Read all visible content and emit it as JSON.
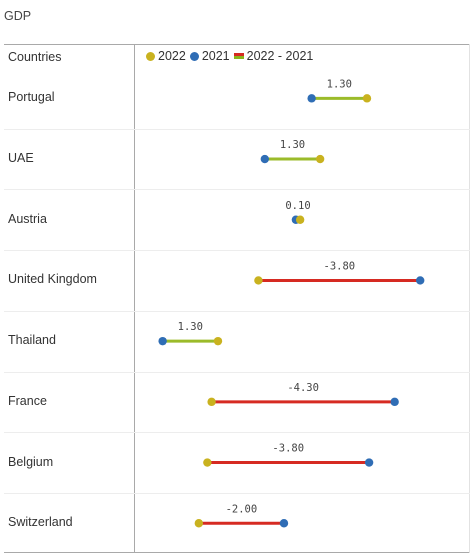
{
  "title": "GDP",
  "column_header": "Countries",
  "legend": [
    {
      "label": "2022",
      "color": "#c9b21f",
      "kind": "dot"
    },
    {
      "label": "2021",
      "color": "#2f6db5",
      "kind": "dot"
    },
    {
      "label": "2022 - 2021",
      "kind": "diff"
    }
  ],
  "colors": {
    "y2022": "#c9b21f",
    "y2021": "#2f6db5",
    "positive": "#9bbb2a",
    "negative": "#d62a22"
  },
  "chart_data": {
    "type": "dumbbell",
    "title": "GDP",
    "category_label": "Countries",
    "series_names": [
      "2022",
      "2021",
      "2022 - 2021"
    ],
    "xlim": [
      -1.5,
      5.5
    ],
    "rows": [
      {
        "country": "Portugal",
        "y2022": 3.55,
        "y2021": 2.25,
        "diff": "1.30"
      },
      {
        "country": "UAE",
        "y2022": 2.45,
        "y2021": 1.15,
        "diff": "1.30"
      },
      {
        "country": "Austria",
        "y2022": 1.98,
        "y2021": 1.88,
        "diff": "0.10"
      },
      {
        "country": "United Kingdom",
        "y2022": 1.0,
        "y2021": 4.8,
        "diff": "-3.80"
      },
      {
        "country": "Thailand",
        "y2022": 0.05,
        "y2021": -1.25,
        "diff": "1.30"
      },
      {
        "country": "France",
        "y2022": -0.1,
        "y2021": 4.2,
        "diff": "-4.30"
      },
      {
        "country": "Belgium",
        "y2022": -0.2,
        "y2021": 3.6,
        "diff": "-3.80"
      },
      {
        "country": "Switzerland",
        "y2022": -0.4,
        "y2021": 1.6,
        "diff": "-2.00"
      }
    ]
  }
}
